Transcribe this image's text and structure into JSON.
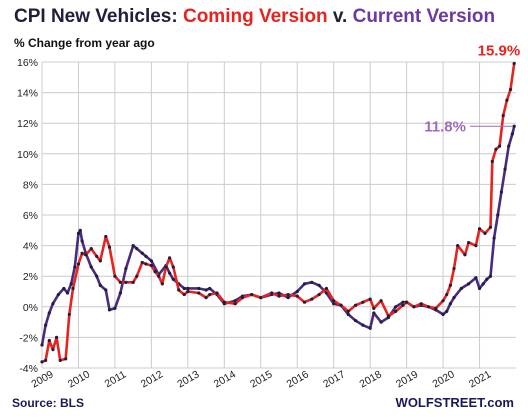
{
  "header": {
    "title_part1": "CPI New Vehicles: ",
    "title_part2": "Coming Version",
    "title_part3": " v. ",
    "title_part4": "Current Version",
    "subtitle": "% Change from year ago"
  },
  "footer": {
    "source": "Source: BLS",
    "watermark": "WOLFSTREET.com"
  },
  "chart_data": {
    "type": "line",
    "title": "CPI New Vehicles: Coming Version v. Current Version",
    "subtitle": "% Change from year ago",
    "xlabel": "",
    "ylabel": "",
    "xlim": [
      2009.0,
      2022.0
    ],
    "ylim": [
      -4,
      16
    ],
    "y_ticks": [
      -4,
      -2,
      0,
      2,
      4,
      6,
      8,
      10,
      12,
      14,
      16
    ],
    "y_tick_labels": [
      "-4%",
      "-2%",
      "0%",
      "2%",
      "4%",
      "6%",
      "8%",
      "10%",
      "12%",
      "14%",
      "16%"
    ],
    "x_ticks": [
      2009,
      2010,
      2011,
      2012,
      2013,
      2014,
      2015,
      2016,
      2017,
      2018,
      2019,
      2020,
      2021
    ],
    "x_tick_labels": [
      "2009",
      "2010",
      "2011",
      "2012",
      "2013",
      "2014",
      "2015",
      "2016",
      "2017",
      "2018",
      "2019",
      "2020",
      "2021"
    ],
    "grid": true,
    "colors": {
      "coming": "#e8231f",
      "current": "#4a2a80",
      "marker": "#1f1f3a",
      "grid": "#cccccc"
    },
    "annotations": [
      {
        "series": "Coming Version",
        "text": "15.9%"
      },
      {
        "series": "Current Version",
        "text": "11.8%"
      }
    ],
    "series": [
      {
        "name": "Coming Version",
        "x": [
          2009.0,
          2009.1,
          2009.2,
          2009.3,
          2009.4,
          2009.5,
          2009.65,
          2009.75,
          2009.85,
          2010.0,
          2010.1,
          2010.2,
          2010.35,
          2010.5,
          2010.6,
          2010.75,
          2010.85,
          2011.0,
          2011.15,
          2011.3,
          2011.5,
          2011.6,
          2011.75,
          2011.85,
          2012.0,
          2012.1,
          2012.2,
          2012.3,
          2012.4,
          2012.5,
          2012.6,
          2012.75,
          2012.9,
          2013.0,
          2013.3,
          2013.5,
          2013.6,
          2013.8,
          2014.0,
          2014.3,
          2014.5,
          2014.75,
          2015.0,
          2015.3,
          2015.5,
          2015.75,
          2016.0,
          2016.2,
          2016.4,
          2016.6,
          2016.8,
          2017.0,
          2017.2,
          2017.4,
          2017.6,
          2017.8,
          2018.0,
          2018.1,
          2018.3,
          2018.5,
          2018.7,
          2018.9,
          2019.0,
          2019.2,
          2019.4,
          2019.6,
          2019.8,
          2020.0,
          2020.1,
          2020.2,
          2020.3,
          2020.4,
          2020.6,
          2020.7,
          2020.9,
          2021.0,
          2021.15,
          2021.3,
          2021.35,
          2021.45,
          2021.55,
          2021.65,
          2021.75,
          2021.85,
          2021.95
        ],
        "y": [
          -3.6,
          -3.5,
          -2.2,
          -2.8,
          -2.0,
          -3.5,
          -3.4,
          -0.5,
          1.2,
          2.8,
          3.5,
          3.4,
          3.8,
          3.3,
          3.0,
          4.6,
          3.9,
          2.0,
          1.6,
          1.6,
          1.6,
          2.0,
          2.9,
          2.8,
          2.7,
          2.3,
          2.0,
          1.5,
          2.6,
          3.2,
          2.6,
          1.1,
          0.8,
          1.0,
          0.9,
          0.6,
          0.8,
          0.9,
          0.3,
          0.2,
          0.6,
          0.8,
          0.6,
          0.9,
          0.7,
          0.8,
          0.7,
          0.3,
          0.5,
          0.8,
          1.2,
          0.4,
          0.1,
          -0.3,
          0.1,
          0.3,
          0.5,
          -0.1,
          0.4,
          -0.6,
          -0.3,
          0.1,
          0.3,
          0.0,
          0.2,
          0.0,
          -0.1,
          0.4,
          0.8,
          1.4,
          2.5,
          4.0,
          3.4,
          4.2,
          4.0,
          5.1,
          4.8,
          5.2,
          9.5,
          10.3,
          10.5,
          12.5,
          13.5,
          14.2,
          15.9
        ]
      },
      {
        "name": "Current Version",
        "x": [
          2009.0,
          2009.1,
          2009.2,
          2009.3,
          2009.45,
          2009.6,
          2009.7,
          2009.8,
          2009.9,
          2010.0,
          2010.05,
          2010.1,
          2010.2,
          2010.35,
          2010.5,
          2010.6,
          2010.75,
          2010.85,
          2011.0,
          2011.15,
          2011.3,
          2011.5,
          2011.6,
          2011.75,
          2011.85,
          2012.0,
          2012.2,
          2012.4,
          2012.5,
          2012.6,
          2012.75,
          2012.9,
          2013.0,
          2013.3,
          2013.5,
          2013.6,
          2013.8,
          2014.0,
          2014.3,
          2014.5,
          2014.75,
          2015.0,
          2015.3,
          2015.5,
          2015.75,
          2016.0,
          2016.2,
          2016.4,
          2016.6,
          2016.8,
          2017.0,
          2017.2,
          2017.4,
          2017.6,
          2017.8,
          2018.0,
          2018.1,
          2018.3,
          2018.5,
          2018.7,
          2018.9,
          2019.0,
          2019.2,
          2019.4,
          2019.6,
          2019.8,
          2020.0,
          2020.1,
          2020.2,
          2020.3,
          2020.5,
          2020.7,
          2020.9,
          2021.0,
          2021.1,
          2021.2,
          2021.3,
          2021.4,
          2021.5,
          2021.6,
          2021.7,
          2021.8,
          2021.9,
          2021.95
        ],
        "y": [
          -2.5,
          -1.2,
          -0.4,
          0.2,
          0.8,
          1.2,
          0.9,
          1.5,
          2.6,
          4.8,
          5.0,
          4.3,
          3.5,
          2.6,
          2.0,
          1.4,
          1.1,
          -0.2,
          -0.1,
          0.9,
          2.5,
          4.0,
          3.8,
          3.5,
          3.3,
          3.0,
          2.1,
          2.7,
          2.2,
          1.8,
          1.5,
          1.2,
          1.2,
          1.2,
          1.1,
          1.2,
          0.8,
          0.2,
          0.4,
          0.7,
          0.8,
          0.6,
          0.8,
          0.9,
          0.6,
          1.0,
          1.5,
          1.6,
          1.4,
          0.9,
          0.2,
          0.1,
          -0.5,
          -0.9,
          -1.2,
          -1.4,
          -0.4,
          -1.0,
          -0.7,
          0.0,
          0.3,
          0.3,
          0.0,
          0.1,
          0.0,
          -0.2,
          -0.5,
          -0.3,
          0.2,
          0.6,
          1.2,
          1.5,
          1.9,
          1.2,
          1.5,
          1.8,
          2.0,
          4.5,
          6.0,
          7.5,
          9.0,
          10.5,
          11.3,
          11.8
        ]
      }
    ]
  }
}
